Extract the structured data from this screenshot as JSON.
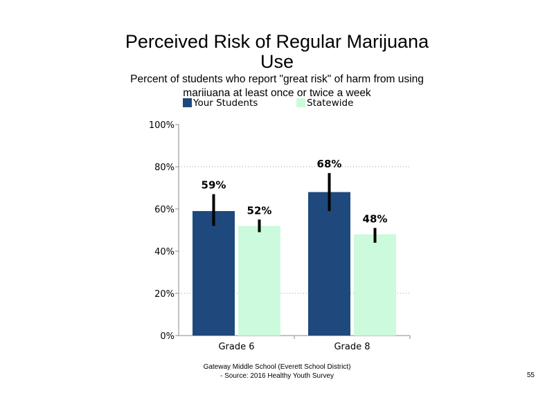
{
  "slide": {
    "title": "Perceived Risk of Regular Marijuana Use",
    "subtitle": "Percent of students who report \"great risk\" of harm from using marijuana at least once or twice a week",
    "footer_line1": "Gateway Middle School (Everett School District)",
    "footer_line2": "- Source: 2016 Healthy Youth Survey",
    "page_number": "55"
  },
  "chart_data": {
    "type": "bar",
    "title": "Perceived Risk of Regular Marijuana Use",
    "subtitle": "Percent of students who report \"great risk\" of harm from using marijuana at least once or twice a week",
    "categories": [
      "Grade 6",
      "Grade 8"
    ],
    "series": [
      {
        "name": "Your Students",
        "color": "#1f497d",
        "values": [
          59,
          68
        ],
        "labels": [
          "59%",
          "68%"
        ],
        "error": [
          [
            52,
            67
          ],
          [
            59,
            77
          ]
        ]
      },
      {
        "name": "Statewide",
        "color": "#ccfadc",
        "values": [
          52,
          48
        ],
        "labels": [
          "52%",
          "48%"
        ],
        "error": [
          [
            49,
            55
          ],
          [
            44,
            51
          ]
        ]
      }
    ],
    "ylim": [
      0,
      100
    ],
    "yticks": [
      0,
      20,
      40,
      60,
      80,
      100
    ],
    "ytick_labels": [
      "0%",
      "20%",
      "40%",
      "60%",
      "80%",
      "100%"
    ],
    "gridlines": [
      20,
      80
    ],
    "legend_position": "top",
    "xlabel": "",
    "ylabel": ""
  }
}
